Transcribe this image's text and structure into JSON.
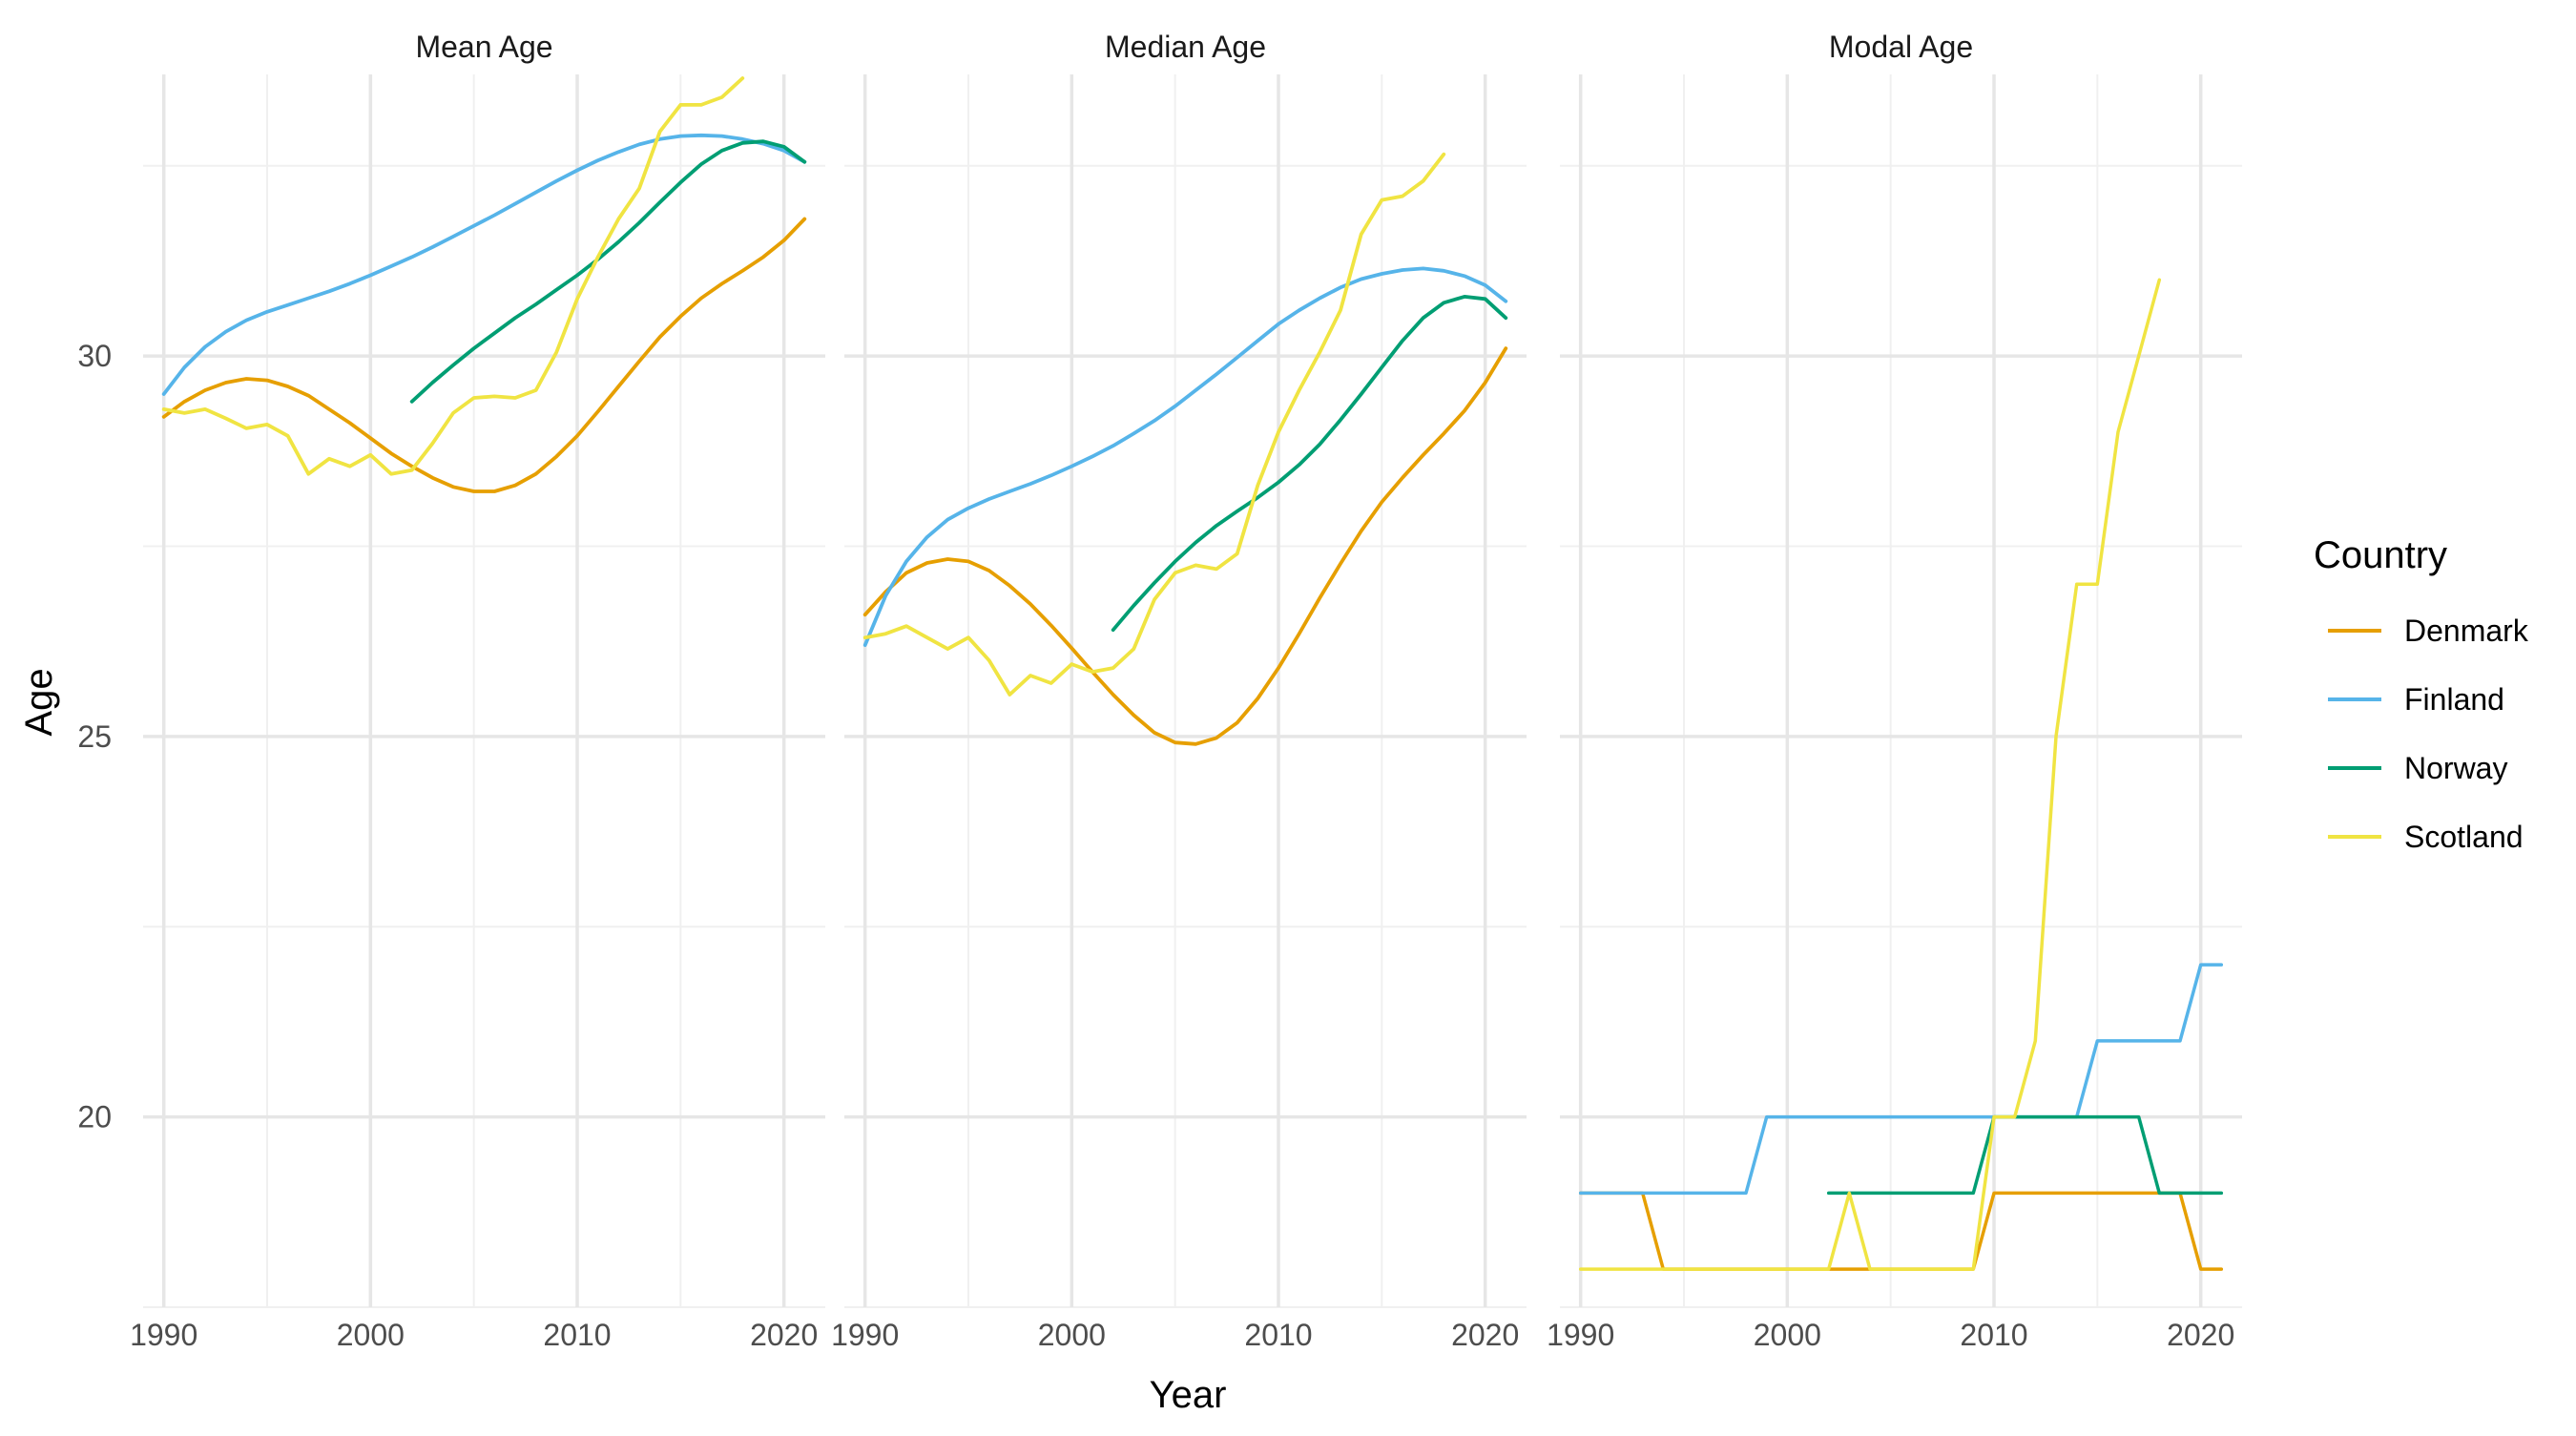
{
  "chart_data": {
    "type": "line",
    "title": "",
    "xlabel": "Year",
    "ylabel": "Age",
    "xlim": [
      1989,
      2022
    ],
    "ylim": [
      17.5,
      33.7
    ],
    "x_ticks": [
      1990,
      2000,
      2010,
      2020
    ],
    "y_ticks": [
      20,
      25,
      30
    ],
    "grid": true,
    "legend": {
      "title": "Country",
      "position": "right",
      "entries": [
        "Denmark",
        "Finland",
        "Norway",
        "Scotland"
      ]
    },
    "colors": {
      "Denmark": "#E69F00",
      "Finland": "#56B4E9",
      "Norway": "#009E73",
      "Scotland": "#F0E442"
    },
    "panels": [
      {
        "title": "Mean Age",
        "series": [
          {
            "name": "Denmark",
            "x": [
              1990,
              1991,
              1992,
              1993,
              1994,
              1995,
              1996,
              1997,
              1998,
              1999,
              2000,
              2001,
              2002,
              2003,
              2004,
              2005,
              2006,
              2007,
              2008,
              2009,
              2010,
              2011,
              2012,
              2013,
              2014,
              2015,
              2016,
              2017,
              2018,
              2019,
              2020,
              2021
            ],
            "y": [
              29.2,
              29.4,
              29.55,
              29.65,
              29.7,
              29.68,
              29.6,
              29.48,
              29.3,
              29.12,
              28.92,
              28.72,
              28.55,
              28.4,
              28.28,
              28.22,
              28.22,
              28.3,
              28.45,
              28.68,
              28.95,
              29.27,
              29.6,
              29.93,
              30.25,
              30.52,
              30.76,
              30.95,
              31.12,
              31.3,
              31.52,
              31.8
            ]
          },
          {
            "name": "Finland",
            "x": [
              1990,
              1991,
              1992,
              1993,
              1994,
              1995,
              1996,
              1997,
              1998,
              1999,
              2000,
              2001,
              2002,
              2003,
              2004,
              2005,
              2006,
              2007,
              2008,
              2009,
              2010,
              2011,
              2012,
              2013,
              2014,
              2015,
              2016,
              2017,
              2018,
              2019,
              2020,
              2021
            ],
            "y": [
              29.5,
              29.85,
              30.12,
              30.32,
              30.47,
              30.58,
              30.67,
              30.76,
              30.85,
              30.95,
              31.06,
              31.18,
              31.3,
              31.43,
              31.57,
              31.71,
              31.85,
              32.0,
              32.15,
              32.3,
              32.44,
              32.57,
              32.68,
              32.78,
              32.85,
              32.89,
              32.9,
              32.89,
              32.85,
              32.79,
              32.7,
              32.55
            ]
          },
          {
            "name": "Norway",
            "x": [
              2002,
              2003,
              2004,
              2005,
              2006,
              2007,
              2008,
              2009,
              2010,
              2011,
              2012,
              2013,
              2014,
              2015,
              2016,
              2017,
              2018,
              2019,
              2020,
              2021
            ],
            "y": [
              29.4,
              29.65,
              29.88,
              30.1,
              30.3,
              30.5,
              30.68,
              30.87,
              31.06,
              31.27,
              31.5,
              31.75,
              32.02,
              32.28,
              32.52,
              32.7,
              32.8,
              32.82,
              32.75,
              32.55
            ]
          },
          {
            "name": "Scotland",
            "x": [
              1990,
              1991,
              1992,
              1993,
              1994,
              1995,
              1996,
              1997,
              1998,
              1999,
              2000,
              2001,
              2002,
              2003,
              2004,
              2005,
              2006,
              2007,
              2008,
              2009,
              2010,
              2011,
              2012,
              2013,
              2014,
              2015,
              2016,
              2017,
              2018
            ],
            "y": [
              29.3,
              29.25,
              29.3,
              29.18,
              29.05,
              29.1,
              28.95,
              28.45,
              28.65,
              28.55,
              28.7,
              28.45,
              28.5,
              28.85,
              29.25,
              29.45,
              29.47,
              29.45,
              29.55,
              30.05,
              30.75,
              31.3,
              31.8,
              32.2,
              32.95,
              33.3,
              33.3,
              33.4,
              33.65
            ]
          }
        ]
      },
      {
        "title": "Median Age",
        "series": [
          {
            "name": "Denmark",
            "x": [
              1990,
              1991,
              1992,
              1993,
              1994,
              1995,
              1996,
              1997,
              1998,
              1999,
              2000,
              2001,
              2002,
              2003,
              2004,
              2005,
              2006,
              2007,
              2008,
              2009,
              2010,
              2011,
              2012,
              2013,
              2014,
              2015,
              2016,
              2017,
              2018,
              2019,
              2020,
              2021
            ],
            "y": [
              26.6,
              26.9,
              27.15,
              27.28,
              27.33,
              27.3,
              27.18,
              26.98,
              26.74,
              26.46,
              26.16,
              25.85,
              25.55,
              25.28,
              25.05,
              24.92,
              24.9,
              24.98,
              25.18,
              25.5,
              25.9,
              26.35,
              26.82,
              27.27,
              27.7,
              28.08,
              28.4,
              28.7,
              28.98,
              29.28,
              29.65,
              30.1
            ]
          },
          {
            "name": "Finland",
            "x": [
              1990,
              1991,
              1992,
              1993,
              1994,
              1995,
              1996,
              1997,
              1998,
              1999,
              2000,
              2001,
              2002,
              2003,
              2004,
              2005,
              2006,
              2007,
              2008,
              2009,
              2010,
              2011,
              2012,
              2013,
              2014,
              2015,
              2016,
              2017,
              2018,
              2019,
              2020,
              2021
            ],
            "y": [
              26.2,
              26.85,
              27.3,
              27.62,
              27.85,
              28.0,
              28.12,
              28.22,
              28.32,
              28.43,
              28.55,
              28.68,
              28.82,
              28.98,
              29.15,
              29.34,
              29.55,
              29.76,
              29.98,
              30.2,
              30.42,
              30.6,
              30.76,
              30.9,
              31.01,
              31.08,
              31.13,
              31.15,
              31.12,
              31.05,
              30.93,
              30.72
            ]
          },
          {
            "name": "Norway",
            "x": [
              2002,
              2003,
              2004,
              2005,
              2006,
              2007,
              2008,
              2009,
              2010,
              2011,
              2012,
              2013,
              2014,
              2015,
              2016,
              2017,
              2018,
              2019,
              2020,
              2021
            ],
            "y": [
              26.4,
              26.72,
              27.02,
              27.3,
              27.55,
              27.77,
              27.96,
              28.14,
              28.34,
              28.57,
              28.84,
              29.16,
              29.5,
              29.85,
              30.2,
              30.5,
              30.7,
              30.78,
              30.75,
              30.5
            ]
          },
          {
            "name": "Scotland",
            "x": [
              1990,
              1991,
              1992,
              1993,
              1994,
              1995,
              1996,
              1997,
              1998,
              1999,
              2000,
              2001,
              2002,
              2003,
              2004,
              2005,
              2006,
              2007,
              2008,
              2009,
              2010,
              2011,
              2012,
              2013,
              2014,
              2015,
              2016,
              2017,
              2018
            ],
            "y": [
              26.3,
              26.35,
              26.45,
              26.3,
              26.15,
              26.3,
              26.0,
              25.55,
              25.8,
              25.7,
              25.95,
              25.85,
              25.9,
              26.15,
              26.8,
              27.15,
              27.25,
              27.2,
              27.4,
              28.3,
              29.0,
              29.55,
              30.05,
              30.6,
              31.6,
              32.05,
              32.1,
              32.3,
              32.65
            ]
          }
        ]
      },
      {
        "title": "Modal Age",
        "series": [
          {
            "name": "Denmark",
            "x": [
              1990,
              1991,
              1992,
              1993,
              1994,
              1995,
              1996,
              1997,
              1998,
              1999,
              2000,
              2001,
              2002,
              2003,
              2004,
              2005,
              2006,
              2007,
              2008,
              2009,
              2010,
              2011,
              2012,
              2013,
              2014,
              2015,
              2016,
              2017,
              2018,
              2019,
              2020,
              2021
            ],
            "y": [
              19,
              19,
              19,
              19,
              18,
              18,
              18,
              18,
              18,
              18,
              18,
              18,
              18,
              18,
              18,
              18,
              18,
              18,
              18,
              18,
              19,
              19,
              19,
              19,
              19,
              19,
              19,
              19,
              19,
              19,
              18,
              18
            ]
          },
          {
            "name": "Finland",
            "x": [
              1990,
              1991,
              1992,
              1993,
              1994,
              1995,
              1996,
              1997,
              1998,
              1999,
              2000,
              2001,
              2002,
              2003,
              2004,
              2005,
              2006,
              2007,
              2008,
              2009,
              2010,
              2011,
              2012,
              2013,
              2014,
              2015,
              2016,
              2017,
              2018,
              2019,
              2020,
              2021
            ],
            "y": [
              19,
              19,
              19,
              19,
              19,
              19,
              19,
              19,
              19,
              20,
              20,
              20,
              20,
              20,
              20,
              20,
              20,
              20,
              20,
              20,
              20,
              20,
              20,
              20,
              20,
              21,
              21,
              21,
              21,
              21,
              22,
              22
            ]
          },
          {
            "name": "Norway",
            "x": [
              2002,
              2003,
              2004,
              2005,
              2006,
              2007,
              2008,
              2009,
              2010,
              2011,
              2012,
              2013,
              2014,
              2015,
              2016,
              2017,
              2018,
              2019,
              2020,
              2021
            ],
            "y": [
              19,
              19,
              19,
              19,
              19,
              19,
              19,
              19,
              20,
              20,
              20,
              20,
              20,
              20,
              20,
              20,
              19,
              19,
              19,
              19
            ]
          },
          {
            "name": "Scotland",
            "x": [
              1990,
              1991,
              1992,
              1993,
              1994,
              1995,
              1996,
              1997,
              1998,
              1999,
              2000,
              2001,
              2002,
              2003,
              2004,
              2005,
              2006,
              2007,
              2008,
              2009,
              2010,
              2011,
              2012,
              2013,
              2014,
              2015,
              2016,
              2017,
              2018
            ],
            "y": [
              18,
              18,
              18,
              18,
              18,
              18,
              18,
              18,
              18,
              18,
              18,
              18,
              18,
              19,
              18,
              18,
              18,
              18,
              18,
              18,
              20,
              20,
              21,
              25,
              27,
              27,
              29,
              30,
              31
            ]
          }
        ]
      }
    ]
  }
}
